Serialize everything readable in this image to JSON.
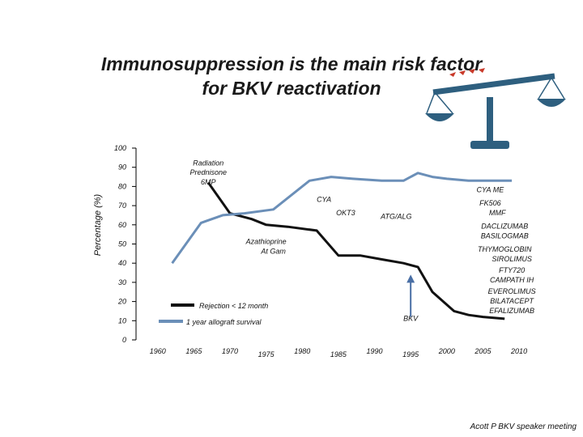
{
  "title": {
    "line1": "Immunosuppression is the main risk factor",
    "line2": "for BKV reactivation"
  },
  "footer": "Acott P BKV speaker meeting",
  "colors": {
    "rejection_line": "#111111",
    "graft_line": "#6b8fb8",
    "arrow": "#4a6fa5",
    "scale": "#2e5f7f",
    "axis": "#000000"
  },
  "icons": {
    "scale": "balance-scale-icon"
  },
  "chart_data": {
    "type": "line",
    "ylabel": "Percentage (%)",
    "ylim": [
      0,
      100
    ],
    "xlim": [
      1957,
      2011
    ],
    "y_ticks": [
      0,
      10,
      20,
      30,
      40,
      50,
      60,
      70,
      80,
      90,
      100
    ],
    "x_ticks": [
      "1960",
      "1965",
      "1970",
      "1975",
      "1980",
      "1985",
      "1990",
      "1995",
      "2000",
      "2005",
      "2010"
    ],
    "grid": false,
    "legend_position": "center",
    "series": [
      {
        "name": "Rejection < 12 month",
        "x": [
          1967,
          1970,
          1973,
          1975,
          1978,
          1982,
          1985,
          1988,
          1991,
          1994,
          1996,
          1998,
          2001,
          2003,
          2005,
          2008
        ],
        "y": [
          82,
          66,
          63,
          60,
          59,
          57,
          44,
          44,
          42,
          40,
          38,
          25,
          15,
          13,
          12,
          11
        ]
      },
      {
        "name": "1 year allograft survival",
        "x": [
          1962,
          1966,
          1969,
          1972,
          1976,
          1981,
          1984,
          1987,
          1991,
          1994,
          1996,
          1998,
          2000,
          2003,
          2006,
          2009
        ],
        "y": [
          40,
          61,
          65,
          66,
          68,
          83,
          85,
          84,
          83,
          83,
          87,
          85,
          84,
          83,
          83,
          83
        ]
      }
    ],
    "annotations": [
      {
        "text": "Radiation",
        "x": 1967,
        "y": 91
      },
      {
        "text": "Prednisone",
        "x": 1967,
        "y": 86
      },
      {
        "text": "6MP",
        "x": 1967,
        "y": 81
      },
      {
        "text": "Azathioprine",
        "x": 1975,
        "y": 50
      },
      {
        "text": "At Gam",
        "x": 1976,
        "y": 45
      },
      {
        "text": "CYA",
        "x": 1983,
        "y": 72
      },
      {
        "text": "OKT3",
        "x": 1986,
        "y": 65
      },
      {
        "text": "ATG/ALG",
        "x": 1993,
        "y": 63
      },
      {
        "text": "CYA ME",
        "x": 2006,
        "y": 77
      },
      {
        "text": "FK506",
        "x": 2006,
        "y": 70
      },
      {
        "text": "MMF",
        "x": 2007,
        "y": 65
      },
      {
        "text": "DACLIZUMAB",
        "x": 2008,
        "y": 58
      },
      {
        "text": "BASILOGMAB",
        "x": 2008,
        "y": 53
      },
      {
        "text": "THYMOGLOBIN",
        "x": 2008,
        "y": 46
      },
      {
        "text": "SIROLIMUS",
        "x": 2009,
        "y": 41
      },
      {
        "text": "FTY720",
        "x": 2009,
        "y": 35
      },
      {
        "text": "CAMPATH IH",
        "x": 2009,
        "y": 30
      },
      {
        "text": "EVEROLIMUS",
        "x": 2009,
        "y": 24
      },
      {
        "text": "BILATACEPT",
        "x": 2009,
        "y": 19
      },
      {
        "text": "EFALIZUMAB",
        "x": 2009,
        "y": 14
      },
      {
        "text": "BKV",
        "x": 1995,
        "y": 10
      }
    ],
    "arrow": {
      "x": 1995,
      "y_from": 12,
      "y_to": 34
    }
  }
}
